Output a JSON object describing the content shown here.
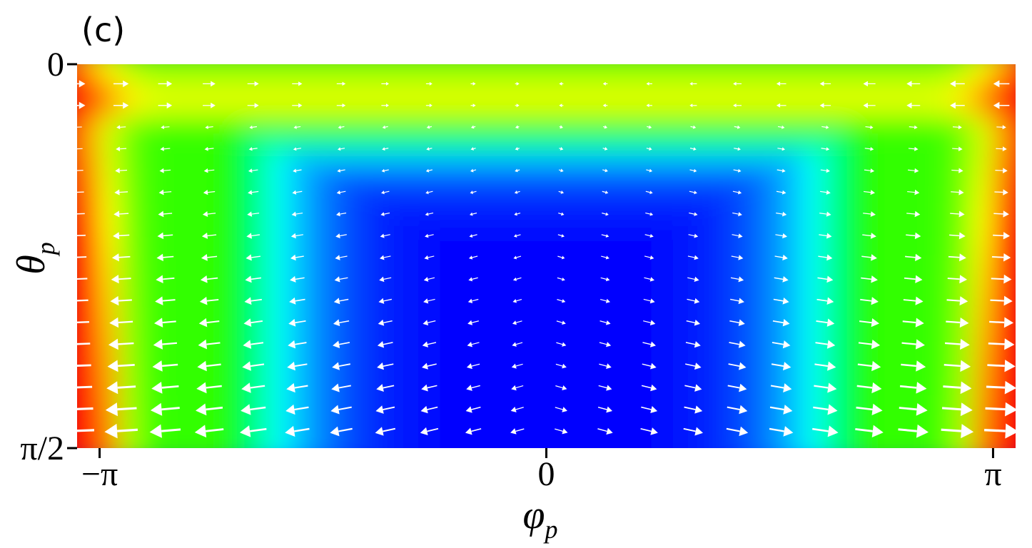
{
  "panel_label": "(c)",
  "chart_data": {
    "type": "heatmap",
    "subtype": "vector-field-over-colormap",
    "title": "",
    "xlabel": "φ",
    "xlabel_sub": "p",
    "ylabel": "θ",
    "ylabel_sub": "p",
    "xlim": [
      -3.3,
      3.3
    ],
    "ylim": [
      0,
      1.5708
    ],
    "y_inverted": true,
    "x_ticks": [
      {
        "value": -3.14159,
        "label": "−π"
      },
      {
        "value": 0,
        "label": "0"
      },
      {
        "value": 3.14159,
        "label": "π"
      }
    ],
    "y_ticks": [
      {
        "value": 0,
        "label": "0"
      },
      {
        "value": 1.5708,
        "label": "π/2"
      }
    ],
    "colormap": "blue-cyan-green-yellow-red",
    "colormap_stops": [
      "#0000ff",
      "#00ffff",
      "#00ff00",
      "#ffff00",
      "#ff0000"
    ],
    "arrow_color": "#ffffff",
    "grid": false,
    "legend": "none",
    "color_field_note_values": {
      "min_region": "center (φ≈0, θ≈π/2)",
      "max_region": "edges (φ≈±π, θ≈π/2)"
    },
    "vector_field": {
      "columns": 22,
      "rows": 17,
      "x_range": [
        -3.3,
        3.2
      ],
      "y_range": [
        0.08,
        1.5
      ]
    }
  }
}
